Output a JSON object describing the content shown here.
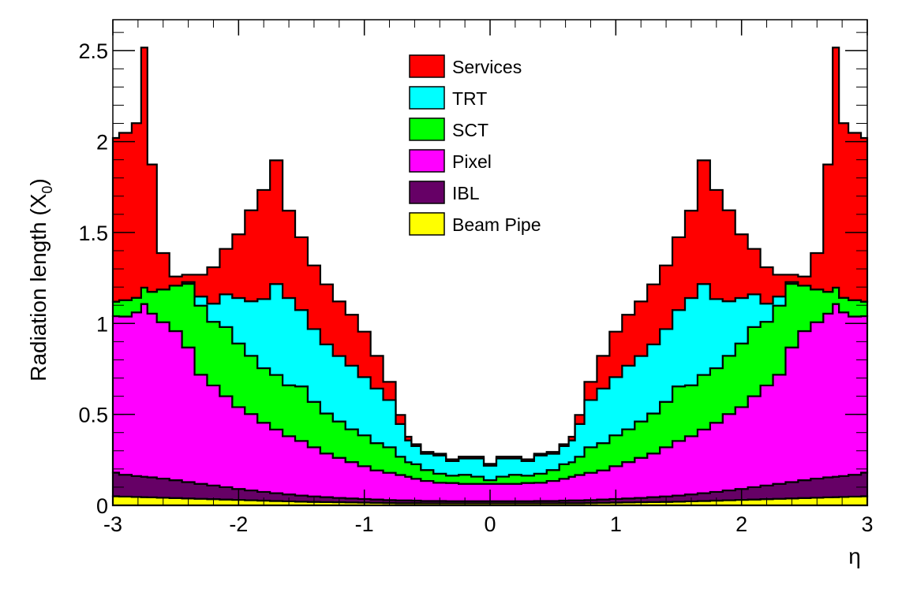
{
  "chart_data": {
    "type": "area",
    "stacked": true,
    "xlabel": "η",
    "ylabel": "Radiation length (X",
    "ylabel_subscript": "0",
    "ylabel_suffix": ")",
    "xlim": [
      -3,
      3
    ],
    "ylim": [
      0,
      2.67
    ],
    "x_ticks": [
      "-3",
      "-2",
      "-1",
      "0",
      "1",
      "2",
      "3"
    ],
    "y_ticks": [
      "0",
      "0.5",
      "1",
      "1.5",
      "2",
      "2.5"
    ],
    "legend_position": "top-center",
    "x": [
      -3.0,
      -2.9,
      -2.8,
      -2.75,
      -2.7,
      -2.6,
      -2.5,
      -2.4,
      -2.3,
      -2.2,
      -2.1,
      -2.0,
      -1.9,
      -1.8,
      -1.7,
      -1.6,
      -1.5,
      -1.4,
      -1.3,
      -1.2,
      -1.1,
      -1.0,
      -0.9,
      -0.8,
      -0.7,
      -0.65,
      -0.6,
      -0.5,
      -0.4,
      -0.3,
      -0.2,
      -0.1,
      0.0,
      0.1,
      0.2,
      0.3,
      0.4,
      0.5,
      0.6,
      0.65,
      0.7,
      0.8,
      0.9,
      1.0,
      1.1,
      1.2,
      1.3,
      1.4,
      1.5,
      1.6,
      1.7,
      1.8,
      1.9,
      2.0,
      2.1,
      2.2,
      2.3,
      2.4,
      2.5,
      2.6,
      2.7,
      2.75,
      2.8,
      2.9,
      3.0
    ],
    "series": [
      {
        "name": "Beam Pipe",
        "color": "#ffff00",
        "values": [
          0.05,
          0.048,
          0.046,
          0.045,
          0.044,
          0.042,
          0.04,
          0.038,
          0.036,
          0.034,
          0.032,
          0.03,
          0.028,
          0.026,
          0.024,
          0.022,
          0.02,
          0.019,
          0.018,
          0.017,
          0.016,
          0.015,
          0.014,
          0.013,
          0.012,
          0.012,
          0.012,
          0.011,
          0.011,
          0.011,
          0.011,
          0.011,
          0.011,
          0.011,
          0.011,
          0.011,
          0.011,
          0.011,
          0.012,
          0.012,
          0.012,
          0.013,
          0.014,
          0.015,
          0.016,
          0.017,
          0.018,
          0.019,
          0.02,
          0.022,
          0.024,
          0.026,
          0.028,
          0.03,
          0.032,
          0.034,
          0.036,
          0.038,
          0.04,
          0.042,
          0.044,
          0.045,
          0.046,
          0.048,
          0.05
        ]
      },
      {
        "name": "IBL",
        "color": "#660066",
        "values": [
          0.13,
          0.12,
          0.115,
          0.112,
          0.11,
          0.105,
          0.098,
          0.09,
          0.082,
          0.075,
          0.068,
          0.06,
          0.054,
          0.048,
          0.043,
          0.038,
          0.034,
          0.03,
          0.027,
          0.024,
          0.022,
          0.02,
          0.018,
          0.016,
          0.015,
          0.015,
          0.014,
          0.013,
          0.013,
          0.012,
          0.012,
          0.012,
          0.012,
          0.012,
          0.012,
          0.012,
          0.013,
          0.013,
          0.014,
          0.015,
          0.015,
          0.016,
          0.018,
          0.02,
          0.022,
          0.024,
          0.027,
          0.03,
          0.034,
          0.038,
          0.043,
          0.048,
          0.054,
          0.06,
          0.068,
          0.075,
          0.082,
          0.09,
          0.098,
          0.105,
          0.11,
          0.112,
          0.115,
          0.12,
          0.13
        ]
      },
      {
        "name": "Pixel",
        "color": "#ff00ff",
        "values": [
          0.86,
          0.87,
          0.9,
          0.95,
          0.9,
          0.86,
          0.82,
          0.74,
          0.6,
          0.55,
          0.5,
          0.45,
          0.42,
          0.38,
          0.35,
          0.32,
          0.3,
          0.27,
          0.24,
          0.22,
          0.2,
          0.18,
          0.16,
          0.15,
          0.14,
          0.13,
          0.12,
          0.11,
          0.1,
          0.1,
          0.095,
          0.095,
          0.095,
          0.095,
          0.095,
          0.1,
          0.1,
          0.11,
          0.12,
          0.13,
          0.14,
          0.15,
          0.16,
          0.18,
          0.2,
          0.22,
          0.24,
          0.27,
          0.3,
          0.32,
          0.35,
          0.38,
          0.42,
          0.45,
          0.5,
          0.55,
          0.6,
          0.74,
          0.82,
          0.86,
          0.9,
          0.95,
          0.9,
          0.87,
          0.86
        ]
      },
      {
        "name": "SCT",
        "color": "#00ff00",
        "values": [
          0.08,
          0.09,
          0.08,
          0.09,
          0.12,
          0.18,
          0.25,
          0.35,
          0.38,
          0.35,
          0.38,
          0.35,
          0.32,
          0.3,
          0.3,
          0.28,
          0.3,
          0.25,
          0.22,
          0.2,
          0.18,
          0.17,
          0.15,
          0.14,
          0.1,
          0.08,
          0.08,
          0.06,
          0.05,
          0.04,
          0.05,
          0.04,
          0.02,
          0.04,
          0.05,
          0.04,
          0.05,
          0.06,
          0.08,
          0.08,
          0.1,
          0.14,
          0.15,
          0.17,
          0.18,
          0.2,
          0.22,
          0.25,
          0.3,
          0.28,
          0.3,
          0.3,
          0.32,
          0.35,
          0.38,
          0.35,
          0.38,
          0.35,
          0.25,
          0.18,
          0.12,
          0.09,
          0.08,
          0.09,
          0.08
        ]
      },
      {
        "name": "TRT",
        "color": "#00ffff",
        "values": [
          0,
          0,
          0,
          0,
          0,
          0,
          0,
          0.01,
          0.05,
          0.1,
          0.18,
          0.25,
          0.3,
          0.38,
          0.5,
          0.48,
          0.42,
          0.4,
          0.38,
          0.36,
          0.35,
          0.32,
          0.3,
          0.26,
          0.18,
          0.12,
          0.1,
          0.09,
          0.1,
          0.08,
          0.09,
          0.1,
          0.08,
          0.1,
          0.09,
          0.08,
          0.1,
          0.09,
          0.1,
          0.12,
          0.18,
          0.26,
          0.3,
          0.32,
          0.35,
          0.36,
          0.38,
          0.4,
          0.42,
          0.48,
          0.5,
          0.38,
          0.3,
          0.25,
          0.18,
          0.1,
          0.05,
          0.01,
          0,
          0,
          0,
          0,
          0,
          0,
          0
        ]
      },
      {
        "name": "Services",
        "color": "#ff0000",
        "values": [
          0.9,
          0.92,
          0.96,
          1.32,
          0.7,
          0.2,
          0.05,
          0.04,
          0.12,
          0.2,
          0.25,
          0.35,
          0.5,
          0.6,
          0.68,
          0.48,
          0.4,
          0.35,
          0.33,
          0.3,
          0.28,
          0.25,
          0.18,
          0.1,
          0.05,
          0.02,
          0.01,
          0.01,
          0.01,
          0.01,
          0.01,
          0.01,
          0.01,
          0.01,
          0.01,
          0.01,
          0.01,
          0.01,
          0.01,
          0.02,
          0.05,
          0.1,
          0.18,
          0.25,
          0.28,
          0.3,
          0.33,
          0.35,
          0.4,
          0.48,
          0.68,
          0.6,
          0.5,
          0.35,
          0.25,
          0.2,
          0.12,
          0.04,
          0.05,
          0.2,
          0.7,
          1.32,
          0.96,
          0.92,
          0.9
        ]
      }
    ]
  }
}
